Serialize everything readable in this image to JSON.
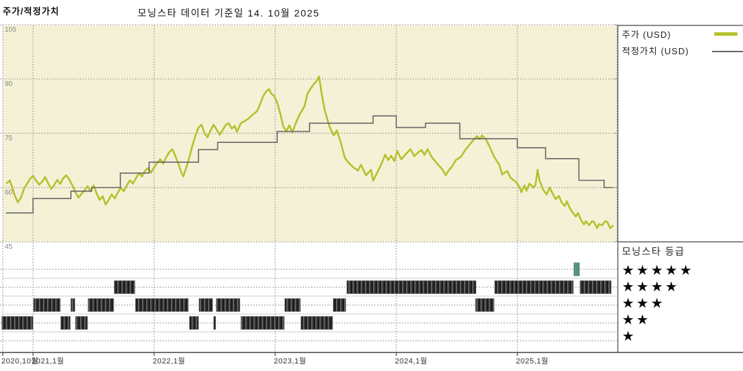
{
  "header": {
    "title": "주가/적정가치",
    "subtitle": "모닝스타 데이터 기준일 14. 10월 2025"
  },
  "legend": {
    "price_label": "주가 (USD)",
    "fair_value_label": "적정가치 (USD)",
    "price_color": "#b5c02e",
    "fair_value_color": "#666666"
  },
  "rating_legend": {
    "title": "모닝스타 등급",
    "star_char": "★",
    "rows": [
      5,
      4,
      3,
      2,
      1
    ]
  },
  "colors": {
    "plot_bg": "#f5f1d6",
    "grid": "#999999",
    "separator": "#cccccc",
    "axis": "#444444",
    "bar_dark": "#1a1a1a",
    "bar_mid": "#4a4a4a",
    "bar_light": "#6e6e6e",
    "highlight_bar": "#4e8a74",
    "highlight_bar_light": "#72a18e"
  },
  "chart_data": {
    "type": "line",
    "title": "주가/적정가치",
    "x_unit": "months since 2020-10-01",
    "ylim": [
      45,
      105
    ],
    "y_ticks": [
      105,
      90,
      75,
      60,
      45
    ],
    "x_ticks": [
      {
        "t": 0,
        "label": "2020,10월"
      },
      {
        "t": 3,
        "label": "2021,1월"
      },
      {
        "t": 15,
        "label": "2022,1월"
      },
      {
        "t": 27,
        "label": "2023,1월"
      },
      {
        "t": 39,
        "label": "2024,1월"
      },
      {
        "t": 51,
        "label": "2025,1월"
      }
    ],
    "series": [
      {
        "name": "주가 (USD)",
        "color": "#b5c02e",
        "step": false,
        "points": [
          [
            0.4,
            61.2
          ],
          [
            0.7,
            62.0
          ],
          [
            0.9,
            60.3
          ],
          [
            1.2,
            57.8
          ],
          [
            1.5,
            55.9
          ],
          [
            1.8,
            57.2
          ],
          [
            2.1,
            59.6
          ],
          [
            2.4,
            61.0
          ],
          [
            2.7,
            62.4
          ],
          [
            3.0,
            63.2
          ],
          [
            3.3,
            62.0
          ],
          [
            3.6,
            60.8
          ],
          [
            3.9,
            61.6
          ],
          [
            4.2,
            62.9
          ],
          [
            4.5,
            61.2
          ],
          [
            4.8,
            59.6
          ],
          [
            5.1,
            60.7
          ],
          [
            5.4,
            62.1
          ],
          [
            5.7,
            61.0
          ],
          [
            6.0,
            62.6
          ],
          [
            6.3,
            63.4
          ],
          [
            6.6,
            62.2
          ],
          [
            6.9,
            60.6
          ],
          [
            7.2,
            58.7
          ],
          [
            7.5,
            57.2
          ],
          [
            7.8,
            58.3
          ],
          [
            8.1,
            59.2
          ],
          [
            8.4,
            60.4
          ],
          [
            8.7,
            59.0
          ],
          [
            9.0,
            60.6
          ],
          [
            9.3,
            58.4
          ],
          [
            9.6,
            56.6
          ],
          [
            9.9,
            57.6
          ],
          [
            10.2,
            55.3
          ],
          [
            10.5,
            56.6
          ],
          [
            10.8,
            58.1
          ],
          [
            11.1,
            57.0
          ],
          [
            11.4,
            58.6
          ],
          [
            11.7,
            60.0
          ],
          [
            12.0,
            59.0
          ],
          [
            12.3,
            60.6
          ],
          [
            12.6,
            62.0
          ],
          [
            12.9,
            61.1
          ],
          [
            13.2,
            62.6
          ],
          [
            13.5,
            64.0
          ],
          [
            13.8,
            63.1
          ],
          [
            14.1,
            64.6
          ],
          [
            14.4,
            65.4
          ],
          [
            14.7,
            64.1
          ],
          [
            15.0,
            65.6
          ],
          [
            15.3,
            66.8
          ],
          [
            15.6,
            67.8
          ],
          [
            15.9,
            66.6
          ],
          [
            16.2,
            68.4
          ],
          [
            16.5,
            69.8
          ],
          [
            16.8,
            70.6
          ],
          [
            17.1,
            68.8
          ],
          [
            17.4,
            66.6
          ],
          [
            17.7,
            64.2
          ],
          [
            17.9,
            63.1
          ],
          [
            18.2,
            65.6
          ],
          [
            18.5,
            68.4
          ],
          [
            18.8,
            71.6
          ],
          [
            19.1,
            74.4
          ],
          [
            19.4,
            76.6
          ],
          [
            19.7,
            77.4
          ],
          [
            20.0,
            75.0
          ],
          [
            20.3,
            73.9
          ],
          [
            20.6,
            75.8
          ],
          [
            20.9,
            77.4
          ],
          [
            21.2,
            76.0
          ],
          [
            21.5,
            74.6
          ],
          [
            21.8,
            75.9
          ],
          [
            22.1,
            77.3
          ],
          [
            22.4,
            77.8
          ],
          [
            22.7,
            76.3
          ],
          [
            23.0,
            77.0
          ],
          [
            23.2,
            75.4
          ],
          [
            23.6,
            77.8
          ],
          [
            24.0,
            78.4
          ],
          [
            24.4,
            79.2
          ],
          [
            24.8,
            80.2
          ],
          [
            25.2,
            81.1
          ],
          [
            25.5,
            83.0
          ],
          [
            25.8,
            85.2
          ],
          [
            26.1,
            86.6
          ],
          [
            26.4,
            87.2
          ],
          [
            26.6,
            86.0
          ],
          [
            26.9,
            85.3
          ],
          [
            27.2,
            83.5
          ],
          [
            27.5,
            80.5
          ],
          [
            27.8,
            77.0
          ],
          [
            28.1,
            75.5
          ],
          [
            28.4,
            77.2
          ],
          [
            28.7,
            75.3
          ],
          [
            29.0,
            77.5
          ],
          [
            29.4,
            80.1
          ],
          [
            29.7,
            81.5
          ],
          [
            29.9,
            82.4
          ],
          [
            30.2,
            85.9
          ],
          [
            30.5,
            87.3
          ],
          [
            30.8,
            88.5
          ],
          [
            31.1,
            89.4
          ],
          [
            31.35,
            90.7
          ],
          [
            31.6,
            86.0
          ],
          [
            31.9,
            81.5
          ],
          [
            32.1,
            79.5
          ],
          [
            32.4,
            76.7
          ],
          [
            32.8,
            74.4
          ],
          [
            33.1,
            75.8
          ],
          [
            33.5,
            72.5
          ],
          [
            33.9,
            68.2
          ],
          [
            34.3,
            66.8
          ],
          [
            34.7,
            65.7
          ],
          [
            35.2,
            64.7
          ],
          [
            35.5,
            66.3
          ],
          [
            36.0,
            63.4
          ],
          [
            36.5,
            64.9
          ],
          [
            36.7,
            61.9
          ],
          [
            37.0,
            63.5
          ],
          [
            37.3,
            65.2
          ],
          [
            37.6,
            67.0
          ],
          [
            37.9,
            69.1
          ],
          [
            38.2,
            67.6
          ],
          [
            38.5,
            68.8
          ],
          [
            38.8,
            67.3
          ],
          [
            39.1,
            70.1
          ],
          [
            39.5,
            67.8
          ],
          [
            40.1,
            69.7
          ],
          [
            40.4,
            70.6
          ],
          [
            40.8,
            68.7
          ],
          [
            41.2,
            69.8
          ],
          [
            41.5,
            70.4
          ],
          [
            41.8,
            69.0
          ],
          [
            42.1,
            70.6
          ],
          [
            42.5,
            68.5
          ],
          [
            43.0,
            66.8
          ],
          [
            43.6,
            64.9
          ],
          [
            43.9,
            63.4
          ],
          [
            44.2,
            64.8
          ],
          [
            44.5,
            65.7
          ],
          [
            44.9,
            67.6
          ],
          [
            45.4,
            68.5
          ],
          [
            45.9,
            70.6
          ],
          [
            46.3,
            72.0
          ],
          [
            46.6,
            73.0
          ],
          [
            47.0,
            74.2
          ],
          [
            47.3,
            73.4
          ],
          [
            47.5,
            74.4
          ],
          [
            47.9,
            73.3
          ],
          [
            48.3,
            71.0
          ],
          [
            48.7,
            68.5
          ],
          [
            49.2,
            66.3
          ],
          [
            49.5,
            63.6
          ],
          [
            50.0,
            64.6
          ],
          [
            50.3,
            62.8
          ],
          [
            50.9,
            61.4
          ],
          [
            51.2,
            60.2
          ],
          [
            51.4,
            58.7
          ],
          [
            51.7,
            60.6
          ],
          [
            51.9,
            59.1
          ],
          [
            52.2,
            61.1
          ],
          [
            52.6,
            60.0
          ],
          [
            52.8,
            60.8
          ],
          [
            53.0,
            64.9
          ],
          [
            53.2,
            61.9
          ],
          [
            53.6,
            59.2
          ],
          [
            53.9,
            58.1
          ],
          [
            54.2,
            60.0
          ],
          [
            54.5,
            58.3
          ],
          [
            54.8,
            56.8
          ],
          [
            55.1,
            57.7
          ],
          [
            55.4,
            55.8
          ],
          [
            55.7,
            54.9
          ],
          [
            55.9,
            56.2
          ],
          [
            56.2,
            54.3
          ],
          [
            56.5,
            53.0
          ],
          [
            56.8,
            52.0
          ],
          [
            57.0,
            53.0
          ],
          [
            57.3,
            51.1
          ],
          [
            57.6,
            49.8
          ],
          [
            57.8,
            50.7
          ],
          [
            58.1,
            49.6
          ],
          [
            58.4,
            50.7
          ],
          [
            58.6,
            50.5
          ],
          [
            58.9,
            48.8
          ],
          [
            59.1,
            49.9
          ],
          [
            59.4,
            49.6
          ],
          [
            59.7,
            50.7
          ],
          [
            59.9,
            50.5
          ],
          [
            60.2,
            48.8
          ],
          [
            60.45,
            49.4
          ]
        ]
      },
      {
        "name": "적정가치 (USD)",
        "color": "#666666",
        "step": true,
        "points": [
          [
            0.3,
            53
          ],
          [
            3.0,
            57
          ],
          [
            6.75,
            59
          ],
          [
            8.8,
            60
          ],
          [
            11.65,
            64
          ],
          [
            14.5,
            67
          ],
          [
            19.4,
            70.5
          ],
          [
            21.3,
            72.5
          ],
          [
            27.2,
            75.5
          ],
          [
            30.4,
            77.8
          ],
          [
            36.7,
            79.8
          ],
          [
            39.0,
            76.6
          ],
          [
            41.9,
            77.8
          ],
          [
            45.3,
            73.5
          ],
          [
            51.0,
            71
          ],
          [
            53.8,
            68
          ],
          [
            57.1,
            62
          ],
          [
            59.6,
            60
          ],
          [
            60.5,
            60
          ]
        ]
      }
    ],
    "ratings": [
      {
        "stars": 2,
        "t0": -0.1,
        "t1": 3.0
      },
      {
        "stars": 3,
        "t0": 3.05,
        "t1": 5.7
      },
      {
        "stars": 2,
        "t0": 5.75,
        "t1": 6.7
      },
      {
        "stars": 3,
        "t0": 6.75,
        "t1": 7.15
      },
      {
        "stars": 2,
        "t0": 7.2,
        "t1": 8.4
      },
      {
        "stars": 3,
        "t0": 8.45,
        "t1": 11.0
      },
      {
        "stars": 4,
        "t0": 11.05,
        "t1": 13.1
      },
      {
        "stars": 3,
        "t0": 13.15,
        "t1": 18.4
      },
      {
        "stars": 2,
        "t0": 18.5,
        "t1": 19.4
      },
      {
        "stars": 3,
        "t0": 19.45,
        "t1": 20.8
      },
      {
        "stars": 2,
        "t0": 20.9,
        "t1": 21.1
      },
      {
        "stars": 3,
        "t0": 21.15,
        "t1": 23.5
      },
      {
        "stars": 2,
        "t0": 23.6,
        "t1": 27.9
      },
      {
        "stars": 3,
        "t0": 27.95,
        "t1": 29.5
      },
      {
        "stars": 2,
        "t0": 29.55,
        "t1": 32.7
      },
      {
        "stars": 3,
        "t0": 32.75,
        "t1": 34.0
      },
      {
        "stars": 4,
        "t0": 34.1,
        "t1": 46.9
      },
      {
        "stars": 3,
        "t0": 46.85,
        "t1": 48.7
      },
      {
        "stars": 4,
        "t0": 48.75,
        "t1": 56.55
      },
      {
        "stars": 5,
        "t0": 56.6,
        "t1": 57.15,
        "highlight": true
      },
      {
        "stars": 4,
        "t0": 57.2,
        "t1": 60.3
      }
    ]
  }
}
